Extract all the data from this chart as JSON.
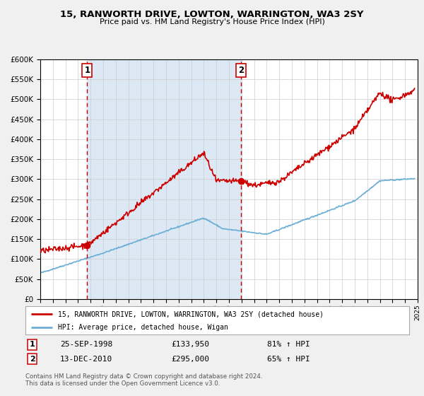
{
  "title": "15, RANWORTH DRIVE, LOWTON, WARRINGTON, WA3 2SY",
  "subtitle": "Price paid vs. HM Land Registry's House Price Index (HPI)",
  "legend_line1": "15, RANWORTH DRIVE, LOWTON, WARRINGTON, WA3 2SY (detached house)",
  "legend_line2": "HPI: Average price, detached house, Wigan",
  "footnote1": "Contains HM Land Registry data © Crown copyright and database right 2024.",
  "footnote2": "This data is licensed under the Open Government Licence v3.0.",
  "sale1_date": "25-SEP-1998",
  "sale1_price": "£133,950",
  "sale1_hpi": "81% ↑ HPI",
  "sale2_date": "13-DEC-2010",
  "sale2_price": "£295,000",
  "sale2_hpi": "65% ↑ HPI",
  "sale1_year": 1998.73,
  "sale2_year": 2010.95,
  "sale1_value": 133950,
  "sale2_value": 295000,
  "hpi_color": "#6baed6",
  "property_color": "#cc0000",
  "vline_color": "#cc0000",
  "shading_color": "#dce9f5",
  "ylim_max": 600000,
  "ylim_min": 0,
  "xlim_min": 1995,
  "xlim_max": 2025,
  "background_color": "#f0f0f0",
  "plot_bg_color": "#ffffff",
  "grid_color": "#cccccc"
}
